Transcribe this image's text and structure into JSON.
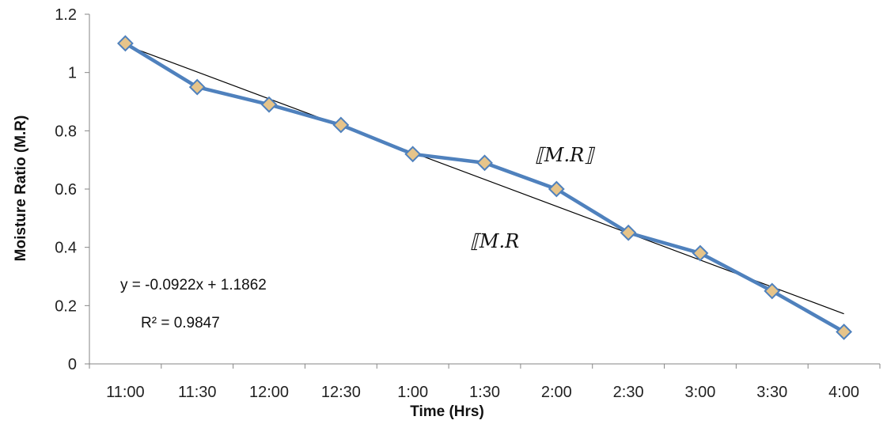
{
  "chart_data": {
    "type": "line",
    "categories": [
      "11:00",
      "11:30",
      "12:00",
      "12:30",
      "1:00",
      "1:30",
      "2:00",
      "2:30",
      "3:00",
      "3:30",
      "4:00"
    ],
    "series": [
      {
        "values": [
          1.1,
          0.95,
          0.89,
          0.82,
          0.72,
          0.69,
          0.6,
          0.45,
          0.38,
          0.25,
          0.11
        ],
        "color": "#4f81bd",
        "marker": "diamond",
        "marker_fill": "#e6c48a"
      }
    ],
    "trendline": {
      "type": "linear",
      "slope": -0.0922,
      "intercept": 1.1862,
      "color": "#000000"
    },
    "equation_text": "y = -0.0922x + 1.1862",
    "r2_text": "R² = 0.9847",
    "annotations": [
      "⟦M.R⟧",
      "⟦M.R"
    ],
    "xlabel": "Time (Hrs)",
    "ylabel": "Moisture Ratio (M.R)",
    "ylim": [
      0,
      1.2
    ],
    "yticks": [
      "0",
      "0.2",
      "0.4",
      "0.6",
      "0.8",
      "1",
      "1.2"
    ],
    "grid": false,
    "legend": "none"
  }
}
